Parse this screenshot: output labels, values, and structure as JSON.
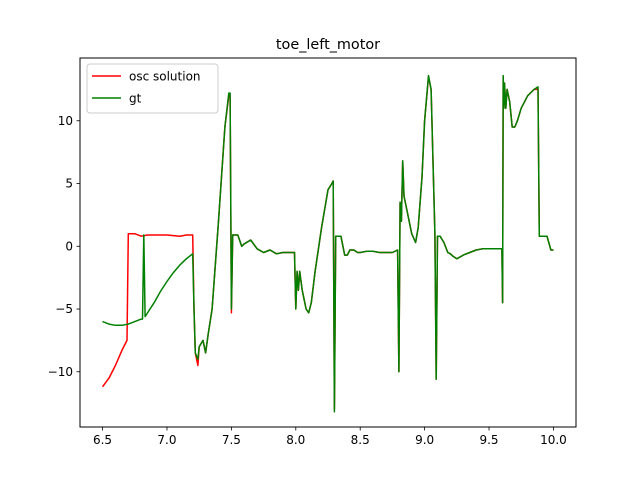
{
  "chart_data": {
    "type": "line",
    "title": "toe_left_motor",
    "xlabel": "",
    "ylabel": "",
    "xlim": [
      6.325,
      10.175
    ],
    "ylim": [
      -14.4,
      15.0
    ],
    "xticks": [
      6.5,
      7.0,
      7.5,
      8.0,
      8.5,
      9.0,
      9.5,
      10.0
    ],
    "xtick_labels": [
      "6.5",
      "7.0",
      "7.5",
      "8.0",
      "8.5",
      "9.0",
      "9.5",
      "10.0"
    ],
    "yticks": [
      -10,
      -5,
      0,
      5,
      10
    ],
    "ytick_labels": [
      "−10",
      "−5",
      "0",
      "5",
      "10"
    ],
    "grid": false,
    "legend_position": "upper left",
    "series": [
      {
        "name": "osc solution",
        "color": "#ff0000",
        "x": [
          6.5,
          6.55,
          6.6,
          6.65,
          6.69,
          6.7,
          6.72,
          6.75,
          6.8,
          6.85,
          6.9,
          6.95,
          7.0,
          7.05,
          7.1,
          7.15,
          7.2,
          7.21,
          7.22,
          7.24,
          7.25,
          7.28,
          7.3,
          7.32,
          7.35,
          7.4,
          7.45,
          7.48,
          7.49,
          7.5,
          7.51,
          7.52,
          7.55,
          7.58,
          7.6,
          7.65,
          7.7,
          7.75,
          7.8,
          7.85,
          7.9,
          7.95,
          7.99,
          8.0,
          8.01,
          8.02,
          8.03,
          8.05,
          8.08,
          8.1,
          8.12,
          8.15,
          8.2,
          8.25,
          8.28,
          8.29,
          8.3,
          8.31,
          8.33,
          8.35,
          8.38,
          8.4,
          8.42,
          8.45,
          8.48,
          8.5,
          8.55,
          8.6,
          8.65,
          8.7,
          8.75,
          8.79,
          8.8,
          8.81,
          8.82,
          8.83,
          8.84,
          8.86,
          8.9,
          8.93,
          8.95,
          8.98,
          9.0,
          9.03,
          9.05,
          9.08,
          9.09,
          9.1,
          9.11,
          9.12,
          9.15,
          9.18,
          9.2,
          9.22,
          9.25,
          9.3,
          9.35,
          9.4,
          9.45,
          9.5,
          9.55,
          9.6,
          9.605,
          9.61,
          9.615,
          9.62,
          9.63,
          9.64,
          9.66,
          9.68,
          9.7,
          9.72,
          9.75,
          9.8,
          9.85,
          9.88,
          9.89,
          9.9,
          9.91,
          9.95,
          9.98,
          10.0
        ],
        "y": [
          -11.2,
          -10.5,
          -9.5,
          -8.3,
          -7.5,
          1.0,
          1.0,
          1.0,
          0.8,
          0.9,
          0.9,
          0.9,
          0.9,
          0.85,
          0.8,
          0.9,
          0.9,
          -5.0,
          -8.5,
          -9.5,
          -8.0,
          -7.5,
          -8.5,
          -7.0,
          -5.0,
          2.0,
          9.5,
          12.0,
          12.0,
          -5.3,
          0.9,
          0.9,
          0.9,
          0.0,
          0.2,
          0.5,
          -0.2,
          -0.5,
          -0.3,
          -0.6,
          -0.5,
          -0.5,
          -0.5,
          -5.0,
          -2.0,
          -3.5,
          -2.0,
          -3.5,
          -5.0,
          -5.3,
          -4.5,
          -2.0,
          1.5,
          4.5,
          5.0,
          5.2,
          -13.0,
          0.8,
          0.8,
          0.8,
          -0.7,
          -0.7,
          -0.3,
          -0.3,
          -0.5,
          -0.5,
          -0.4,
          -0.4,
          -0.5,
          -0.5,
          -0.5,
          -0.3,
          -10.0,
          3.5,
          2.0,
          6.8,
          4.0,
          3.0,
          1.0,
          0.3,
          1.5,
          5.5,
          10.0,
          13.5,
          12.5,
          1.0,
          -10.6,
          0.8,
          0.8,
          0.8,
          0.3,
          -0.5,
          -0.6,
          -0.8,
          -1.0,
          -0.7,
          -0.5,
          -0.3,
          -0.2,
          -0.2,
          -0.2,
          -0.2,
          -4.5,
          13.5,
          11.0,
          13.0,
          11.0,
          12.5,
          11.5,
          9.5,
          9.5,
          10.0,
          11.0,
          12.0,
          12.5,
          12.5,
          0.8,
          0.8,
          0.8,
          0.8,
          -0.3,
          -0.3
        ]
      },
      {
        "name": "gt",
        "color": "#008000",
        "x": [
          6.5,
          6.55,
          6.6,
          6.65,
          6.7,
          6.75,
          6.8,
          6.81,
          6.82,
          6.83,
          6.9,
          6.95,
          7.0,
          7.05,
          7.1,
          7.15,
          7.2,
          7.21,
          7.22,
          7.24,
          7.25,
          7.28,
          7.3,
          7.32,
          7.35,
          7.4,
          7.45,
          7.48,
          7.49,
          7.5,
          7.51,
          7.52,
          7.55,
          7.58,
          7.6,
          7.65,
          7.7,
          7.75,
          7.8,
          7.85,
          7.9,
          7.95,
          7.99,
          8.0,
          8.01,
          8.02,
          8.03,
          8.05,
          8.08,
          8.1,
          8.12,
          8.15,
          8.2,
          8.25,
          8.28,
          8.29,
          8.3,
          8.31,
          8.33,
          8.35,
          8.38,
          8.4,
          8.42,
          8.45,
          8.48,
          8.5,
          8.55,
          8.6,
          8.65,
          8.7,
          8.75,
          8.79,
          8.8,
          8.81,
          8.82,
          8.83,
          8.84,
          8.86,
          8.9,
          8.93,
          8.95,
          8.98,
          9.0,
          9.03,
          9.05,
          9.08,
          9.09,
          9.1,
          9.11,
          9.12,
          9.15,
          9.18,
          9.2,
          9.22,
          9.25,
          9.3,
          9.35,
          9.4,
          9.45,
          9.5,
          9.55,
          9.6,
          9.605,
          9.61,
          9.615,
          9.62,
          9.63,
          9.64,
          9.66,
          9.68,
          9.7,
          9.72,
          9.75,
          9.8,
          9.85,
          9.88,
          9.89,
          9.9,
          9.91,
          9.95,
          9.98,
          10.0
        ],
        "y": [
          -6.0,
          -6.2,
          -6.3,
          -6.3,
          -6.2,
          -6.0,
          -5.8,
          -5.8,
          0.9,
          -5.6,
          -4.5,
          -3.6,
          -2.8,
          -2.1,
          -1.5,
          -1.0,
          -0.6,
          -5.0,
          -8.5,
          -9.0,
          -8.0,
          -7.5,
          -8.5,
          -7.0,
          -5.0,
          2.0,
          9.5,
          12.2,
          12.2,
          -5.0,
          0.9,
          0.9,
          0.9,
          0.0,
          0.2,
          0.5,
          -0.2,
          -0.5,
          -0.3,
          -0.6,
          -0.5,
          -0.5,
          -0.5,
          -5.0,
          -2.0,
          -3.5,
          -2.0,
          -3.5,
          -5.0,
          -5.3,
          -4.5,
          -2.0,
          1.5,
          4.5,
          5.0,
          5.2,
          -13.2,
          0.8,
          0.8,
          0.8,
          -0.7,
          -0.7,
          -0.3,
          -0.3,
          -0.5,
          -0.5,
          -0.4,
          -0.4,
          -0.5,
          -0.5,
          -0.5,
          -0.3,
          -10.0,
          3.5,
          2.0,
          6.8,
          4.0,
          3.0,
          1.0,
          0.3,
          1.5,
          5.5,
          10.0,
          13.6,
          12.5,
          1.0,
          -10.6,
          0.8,
          0.8,
          0.8,
          0.3,
          -0.5,
          -0.6,
          -0.8,
          -1.0,
          -0.7,
          -0.5,
          -0.3,
          -0.2,
          -0.2,
          -0.2,
          -0.2,
          -4.5,
          13.6,
          11.0,
          13.0,
          11.0,
          12.5,
          11.5,
          9.5,
          9.5,
          10.0,
          11.0,
          12.0,
          12.5,
          12.7,
          0.8,
          0.8,
          0.8,
          0.8,
          -0.3,
          -0.3
        ]
      }
    ]
  }
}
